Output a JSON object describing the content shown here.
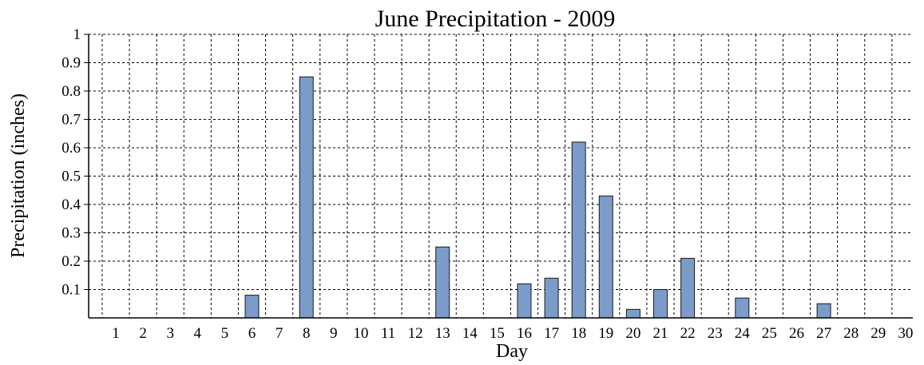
{
  "chart_data": {
    "type": "bar",
    "title": "June Precipitation - 2009",
    "xlabel": "Day",
    "ylabel": "Precipitation (inches)",
    "categories": [
      "1",
      "2",
      "3",
      "4",
      "5",
      "6",
      "7",
      "8",
      "9",
      "10",
      "11",
      "12",
      "13",
      "14",
      "15",
      "16",
      "17",
      "18",
      "19",
      "20",
      "21",
      "22",
      "23",
      "24",
      "25",
      "26",
      "27",
      "28",
      "29",
      "30"
    ],
    "values": [
      0,
      0,
      0,
      0,
      0,
      0.08,
      0,
      0.85,
      0,
      0,
      0,
      0,
      0.25,
      0,
      0,
      0.12,
      0.14,
      0.62,
      0.43,
      0.03,
      0.1,
      0.21,
      0,
      0.07,
      0,
      0,
      0.05,
      0,
      0,
      0
    ],
    "ylim": [
      0,
      1
    ],
    "yticks": [
      "0.1",
      "0.2",
      "0.3",
      "0.4",
      "0.5",
      "0.6",
      "0.7",
      "0.8",
      "0.9",
      "1"
    ],
    "grid": true,
    "bar_color": "#7b9cc9"
  }
}
